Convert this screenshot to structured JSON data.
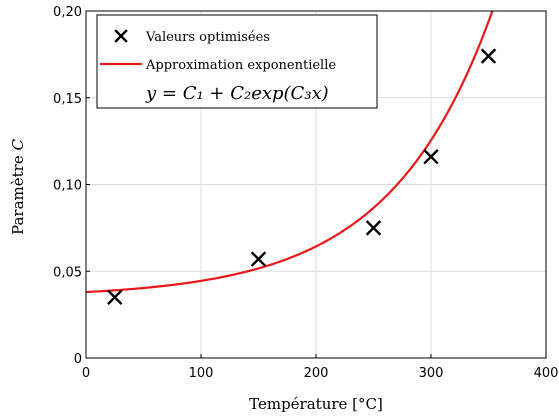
{
  "chart_data": {
    "type": "scatter",
    "xlabel": "Température [°C]",
    "ylabel_prefix": "Paramètre ",
    "ylabel_var": "C",
    "xlim": [
      0,
      400
    ],
    "ylim": [
      0,
      0.2
    ],
    "x_ticks": [
      0,
      100,
      200,
      300,
      400
    ],
    "y_ticks": [
      0,
      0.05,
      0.1,
      0.15,
      0.2
    ],
    "x_tick_labels": [
      "0",
      "100",
      "200",
      "300",
      "400"
    ],
    "y_tick_labels": [
      "0",
      "0,05",
      "0,10",
      "0,15",
      "0,20"
    ],
    "grid": true,
    "legend_position": "top-left",
    "series": [
      {
        "name": "Valeurs optimisées",
        "marker": "x",
        "color": "#000000",
        "x": [
          25,
          150,
          250,
          300,
          350
        ],
        "y": [
          0.035,
          0.057,
          0.075,
          0.116,
          0.174
        ]
      },
      {
        "name": "Approximation exponentielle",
        "line": true,
        "color": "#e8191a",
        "model": {
          "C1": 0.0349,
          "C2": 0.0031,
          "C3": 0.01125
        },
        "x_range": [
          0,
          400
        ]
      }
    ],
    "equation": "y = C₁ + C₂exp(C₃x)"
  }
}
